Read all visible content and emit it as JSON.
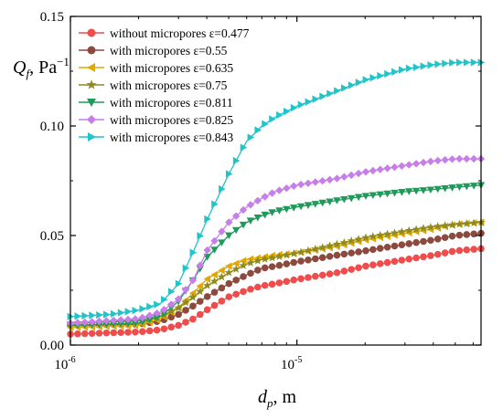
{
  "chart_data": {
    "type": "line",
    "x_scale": "log",
    "xlim": [
      1e-06,
      6.5e-05
    ],
    "ylim": [
      0,
      0.15
    ],
    "xlabel": {
      "main": "d",
      "sub": "p",
      "unit": ", m"
    },
    "ylabel": {
      "main": "Q",
      "sub": "f",
      "unit": ", Pa",
      "sup": "−1"
    },
    "x_ticks": [
      {
        "value": 1e-06,
        "base": "10",
        "exp": "-6"
      },
      {
        "value": 1e-05,
        "base": "10",
        "exp": "-5"
      }
    ],
    "y_ticks": [
      {
        "value": 0,
        "label": "0.00"
      },
      {
        "value": 0.05,
        "label": "0.05"
      },
      {
        "value": 0.1,
        "label": "0.10"
      },
      {
        "value": 0.15,
        "label": "0.15"
      }
    ],
    "legend_position": "top-left",
    "series": [
      {
        "name": "without micropores ε=0.477",
        "color": "#f04c4c",
        "marker": "circle",
        "x": [
          1e-06,
          2e-06,
          2.5e-06,
          3e-06,
          3.5e-06,
          4e-06,
          5e-06,
          6e-06,
          7e-06,
          8e-06,
          1e-05,
          1.5e-05,
          2e-05,
          3e-05,
          4e-05,
          5e-05,
          6.5e-05
        ],
        "y": [
          0.005,
          0.006,
          0.007,
          0.009,
          0.012,
          0.016,
          0.022,
          0.025,
          0.027,
          0.028,
          0.03,
          0.033,
          0.036,
          0.039,
          0.041,
          0.043,
          0.044
        ]
      },
      {
        "name": "with micropores ε=0.55",
        "color": "#8c4a3f",
        "marker": "circle",
        "x": [
          1e-06,
          2e-06,
          2.5e-06,
          3e-06,
          3.5e-06,
          4e-06,
          5e-06,
          6e-06,
          7e-06,
          8e-06,
          1e-05,
          1.5e-05,
          2e-05,
          3e-05,
          4e-05,
          5e-05,
          6.5e-05
        ],
        "y": [
          0.009,
          0.0095,
          0.011,
          0.014,
          0.018,
          0.022,
          0.028,
          0.032,
          0.035,
          0.036,
          0.038,
          0.041,
          0.043,
          0.046,
          0.048,
          0.05,
          0.051
        ]
      },
      {
        "name": "with micropores ε=0.635",
        "color": "#e0a800",
        "marker": "triangle-left",
        "x": [
          1e-06,
          2e-06,
          2.5e-06,
          3e-06,
          3.5e-06,
          4e-06,
          5e-06,
          6e-06,
          7e-06,
          8e-06,
          1e-05,
          1.5e-05,
          2e-05,
          3e-05,
          4e-05,
          5e-05,
          6.5e-05
        ],
        "y": [
          0.008,
          0.009,
          0.012,
          0.017,
          0.024,
          0.03,
          0.036,
          0.039,
          0.04,
          0.041,
          0.042,
          0.045,
          0.048,
          0.051,
          0.053,
          0.055,
          0.056
        ]
      },
      {
        "name": "with micropores ε=0.75",
        "color": "#8f8a1f",
        "marker": "star",
        "x": [
          1e-06,
          2e-06,
          2.5e-06,
          3e-06,
          3.5e-06,
          4e-06,
          5e-06,
          6e-06,
          7e-06,
          8e-06,
          1e-05,
          1.5e-05,
          2e-05,
          3e-05,
          4e-05,
          5e-05,
          6.5e-05
        ],
        "y": [
          0.01,
          0.011,
          0.013,
          0.017,
          0.022,
          0.027,
          0.033,
          0.037,
          0.039,
          0.04,
          0.042,
          0.046,
          0.049,
          0.052,
          0.054,
          0.055,
          0.056
        ]
      },
      {
        "name": "with micropores ε=0.811",
        "color": "#1f9a5a",
        "marker": "triangle-down",
        "x": [
          1e-06,
          2e-06,
          2.5e-06,
          3e-06,
          3.5e-06,
          4e-06,
          5e-06,
          6e-06,
          7e-06,
          8e-06,
          1e-05,
          1.5e-05,
          2e-05,
          3e-05,
          4e-05,
          5e-05,
          6.5e-05
        ],
        "y": [
          0.009,
          0.01,
          0.013,
          0.02,
          0.03,
          0.04,
          0.05,
          0.056,
          0.059,
          0.061,
          0.063,
          0.066,
          0.068,
          0.07,
          0.071,
          0.072,
          0.073
        ]
      },
      {
        "name": "with micropores ε=0.825",
        "color": "#c77ee8",
        "marker": "diamond",
        "x": [
          1e-06,
          2e-06,
          2.5e-06,
          3e-06,
          3.5e-06,
          4e-06,
          5e-06,
          6e-06,
          7e-06,
          8e-06,
          1e-05,
          1.5e-05,
          2e-05,
          3e-05,
          4e-05,
          5e-05,
          6.5e-05
        ],
        "y": [
          0.01,
          0.012,
          0.015,
          0.021,
          0.03,
          0.043,
          0.056,
          0.063,
          0.067,
          0.07,
          0.073,
          0.076,
          0.079,
          0.082,
          0.084,
          0.085,
          0.085
        ]
      },
      {
        "name": "with micropores ε=0.843",
        "color": "#22c4c8",
        "marker": "triangle-right",
        "x": [
          1e-06,
          1.5e-06,
          2e-06,
          2.5e-06,
          3e-06,
          3.5e-06,
          4e-06,
          4.5e-06,
          5e-06,
          6e-06,
          7e-06,
          8e-06,
          1e-05,
          1.5e-05,
          2e-05,
          3e-05,
          4e-05,
          5e-05,
          6.5e-05
        ],
        "y": [
          0.013,
          0.014,
          0.016,
          0.019,
          0.028,
          0.043,
          0.057,
          0.068,
          0.078,
          0.093,
          0.1,
          0.104,
          0.109,
          0.116,
          0.121,
          0.126,
          0.128,
          0.129,
          0.129
        ]
      }
    ]
  }
}
